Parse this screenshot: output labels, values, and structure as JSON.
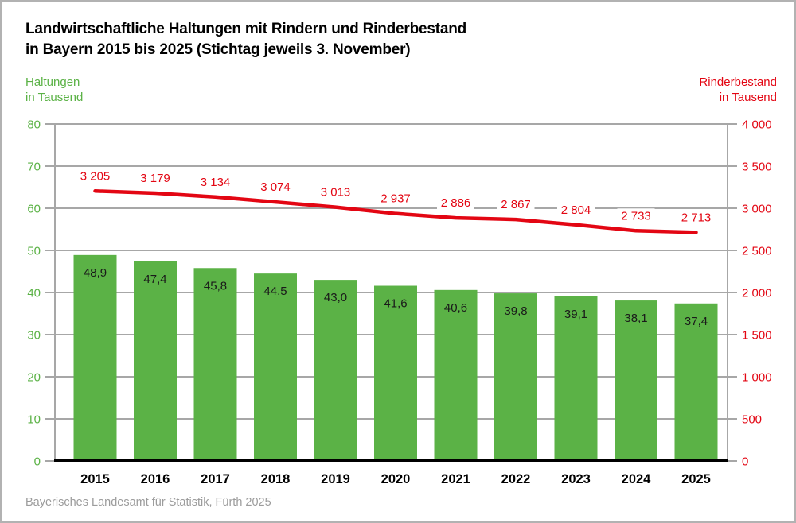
{
  "title": {
    "line1": "Landwirtschaftliche Haltungen mit Rindern und Rinderbestand",
    "line2": "in Bayern 2015 bis 2025 (Stichtag jeweils 3. November)"
  },
  "left_axis_title": {
    "line1": "Haltungen",
    "line2": "in Tausend"
  },
  "right_axis_title": {
    "line1": "Rinderbestand",
    "line2": "in Tausend"
  },
  "source": "Bayerisches Landesamt für Statistik, Fürth 2025",
  "colors": {
    "green": "#5bb246",
    "red": "#e30613",
    "grid": "#a7a7a7",
    "axis_gray": "#a7a7a7",
    "axis_black": "#000000",
    "bar_label_black": "#1a1a1a",
    "year_black": "#000000",
    "source_gray": "#9c9c9c"
  },
  "chart_data": {
    "type": "bar+line",
    "title": "Landwirtschaftliche Haltungen mit Rindern und Rinderbestand in Bayern 2015 bis 2025 (Stichtag jeweils 3. November)",
    "categories": [
      "2015",
      "2016",
      "2017",
      "2018",
      "2019",
      "2020",
      "2021",
      "2022",
      "2023",
      "2024",
      "2025"
    ],
    "series": [
      {
        "name": "Haltungen in Tausend",
        "type": "bar",
        "axis": "left",
        "color_key": "green",
        "values": [
          48.9,
          47.4,
          45.8,
          44.5,
          43.0,
          41.6,
          40.6,
          39.8,
          39.1,
          38.1,
          37.4
        ],
        "labels": [
          "48,9",
          "47,4",
          "45,8",
          "44,5",
          "43,0",
          "41,6",
          "40,6",
          "39,8",
          "39,1",
          "38,1",
          "37,4"
        ]
      },
      {
        "name": "Rinderbestand in Tausend",
        "type": "line",
        "axis": "right",
        "color_key": "red",
        "values": [
          3205,
          3179,
          3134,
          3074,
          3013,
          2937,
          2886,
          2867,
          2804,
          2733,
          2713
        ],
        "labels": [
          "3 205",
          "3 179",
          "3 134",
          "3 074",
          "3 013",
          "2 937",
          "2 886",
          "2 867",
          "2 804",
          "2 733",
          "2 713"
        ]
      }
    ],
    "left_axis": {
      "min": 0,
      "max": 80,
      "step": 10,
      "tick_labels": [
        "0",
        "10",
        "20",
        "30",
        "40",
        "50",
        "60",
        "70",
        "80"
      ]
    },
    "right_axis": {
      "min": 0,
      "max": 4000,
      "step": 500,
      "tick_labels": [
        "0",
        "500",
        "1 000",
        "1 500",
        "2 000",
        "2 500",
        "3 000",
        "3 500",
        "4 000"
      ]
    },
    "grid": true,
    "legend_position": "none"
  }
}
